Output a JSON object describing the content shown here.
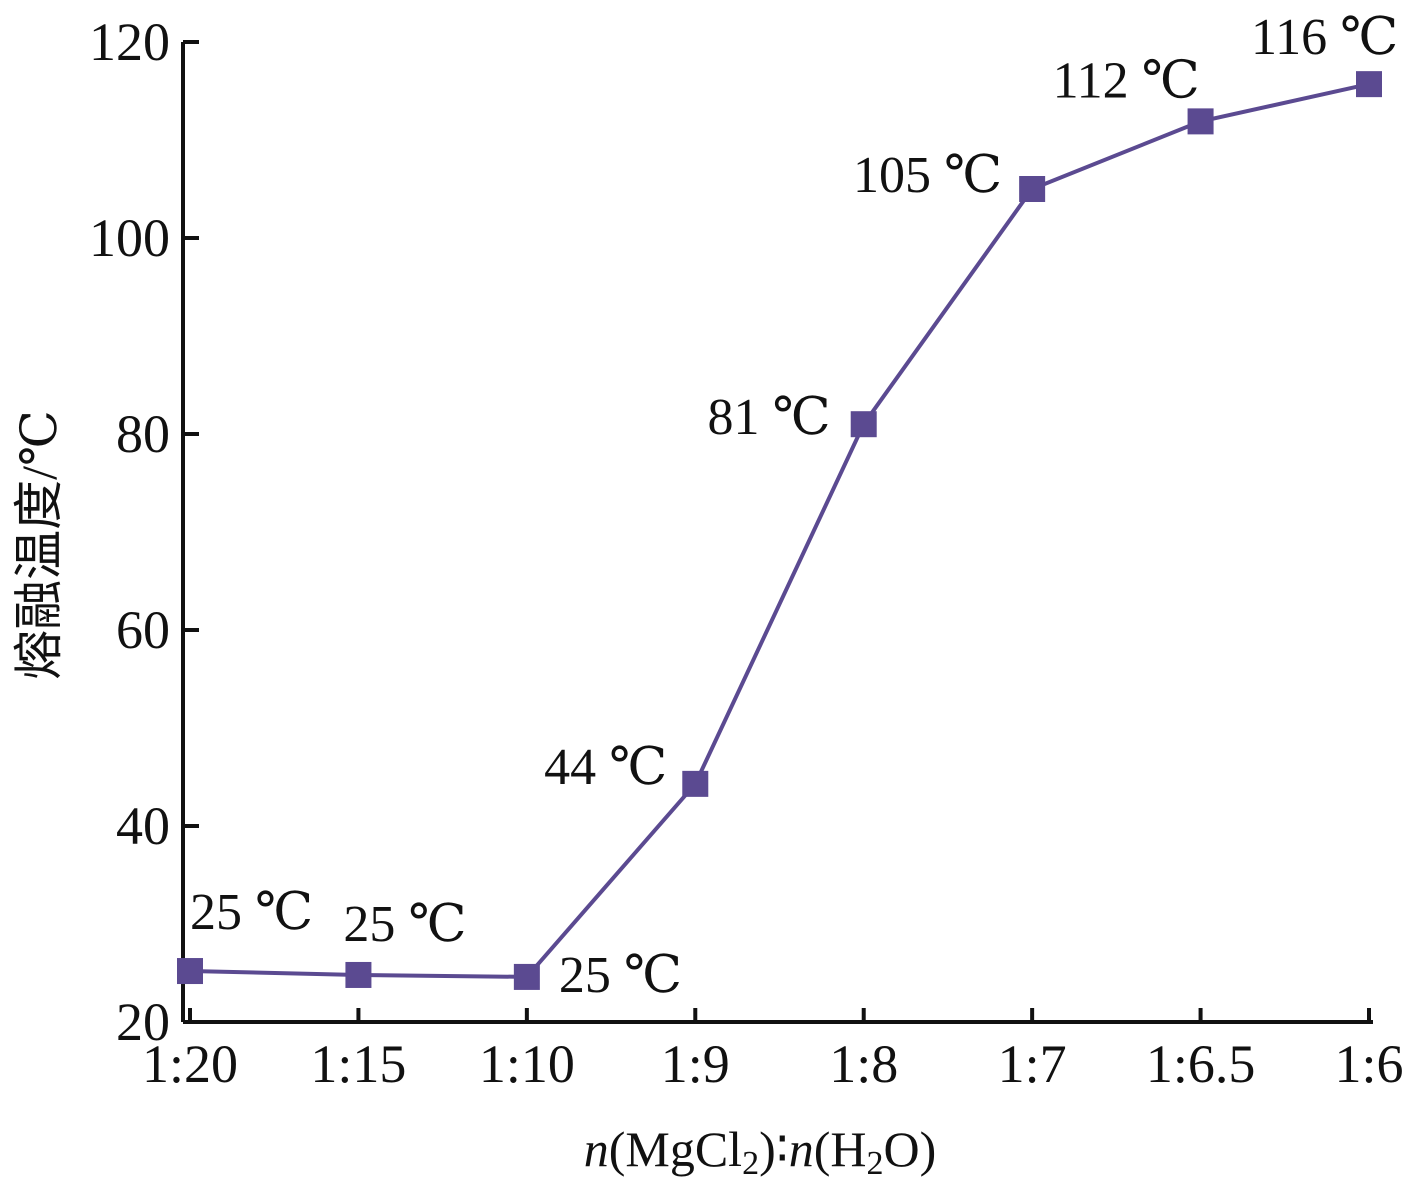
{
  "chart_data": {
    "type": "line",
    "categories": [
      "1:20",
      "1:15",
      "1:10",
      "1:9",
      "1:8",
      "1:7",
      "1:6.5",
      "1:6"
    ],
    "values": [
      25,
      25,
      25,
      44,
      81,
      105,
      112,
      116
    ],
    "plotted_values": [
      25.2,
      24.8,
      24.6,
      44.3,
      81.0,
      105.0,
      111.9,
      115.7
    ],
    "data_labels": [
      "25 ℃",
      "25 ℃",
      "25 ℃",
      "44 ℃",
      "81 ℃",
      "105 ℃",
      "112 ℃",
      "116 ℃"
    ],
    "xlabel": {
      "n1": "n",
      "p1": "(MgCl",
      "sub1": "2",
      "p2": ")",
      "colon": "∶",
      "n2": "n",
      "p3": "(H",
      "sub2": "2",
      "p4": "O)"
    },
    "ylabel": "熔融温度/℃",
    "ylim": [
      20,
      120
    ],
    "yticks": [
      20,
      40,
      60,
      80,
      100,
      120
    ],
    "grid": false,
    "series_color": "#5b4a91",
    "axis_color": "#111111"
  }
}
